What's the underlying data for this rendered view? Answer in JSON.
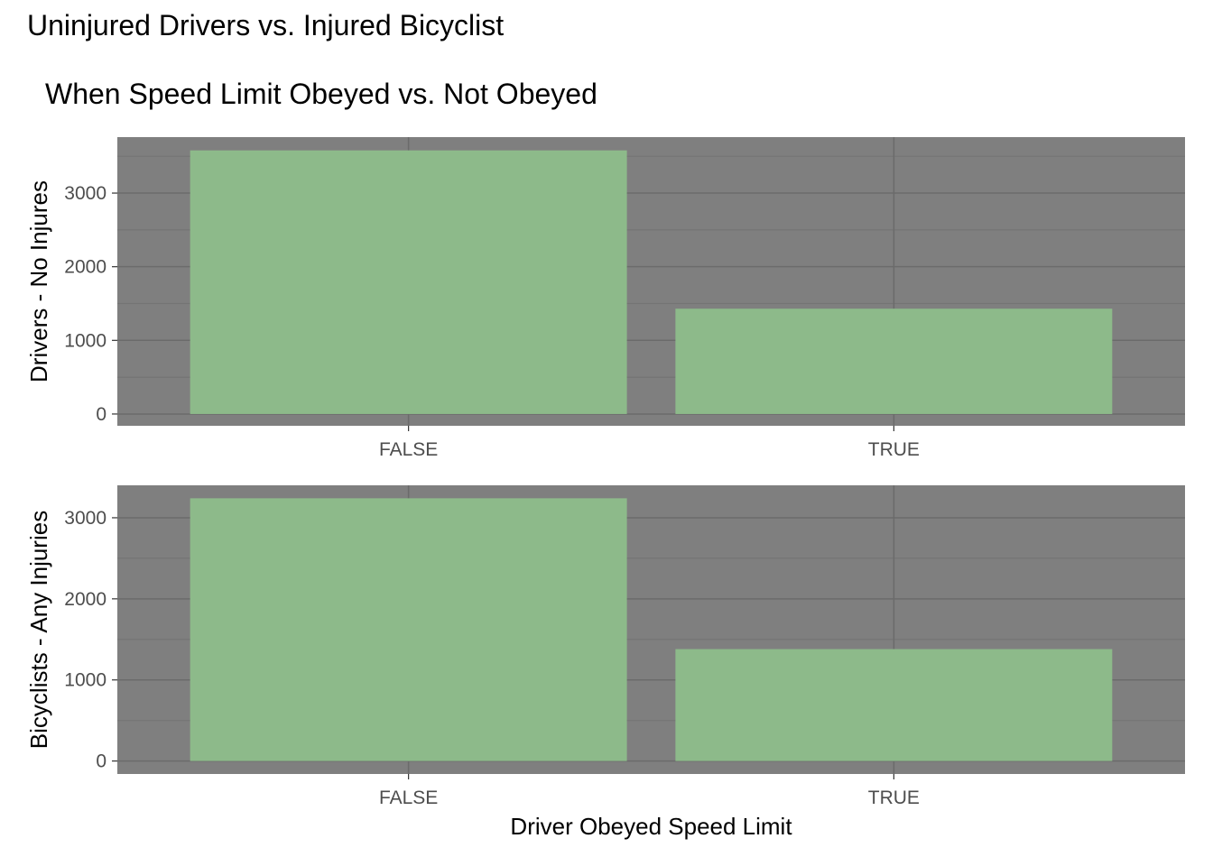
{
  "figure": {
    "title": "Uninjured Drivers vs. Injured Bicyclist",
    "subtitle": "When Speed Limit Obeyed vs. Not Obeyed"
  },
  "colors": {
    "panel_background": "#7f7f7f",
    "grid_major": "#6b6b6b",
    "grid_minor": "#747474",
    "bar_fill": "#8dba8a",
    "tick_text": "#4d4d4d",
    "axis_title": "#000000"
  },
  "chart_data": [
    {
      "type": "bar",
      "title": "",
      "categories": [
        "FALSE",
        "TRUE"
      ],
      "values": [
        3580,
        1430
      ],
      "xlabel": "",
      "ylabel": "Drivers - No Injures",
      "yticks": [
        0,
        1000,
        2000,
        3000
      ],
      "ylim": [
        -160,
        3760
      ],
      "grid": true
    },
    {
      "type": "bar",
      "title": "",
      "categories": [
        "FALSE",
        "TRUE"
      ],
      "values": [
        3240,
        1380
      ],
      "xlabel": "Driver Obeyed Speed Limit",
      "ylabel": "Bicyclists - Any Injuries",
      "yticks": [
        0,
        1000,
        2000,
        3000
      ],
      "ylim": [
        -160,
        3400
      ],
      "grid": true
    }
  ]
}
